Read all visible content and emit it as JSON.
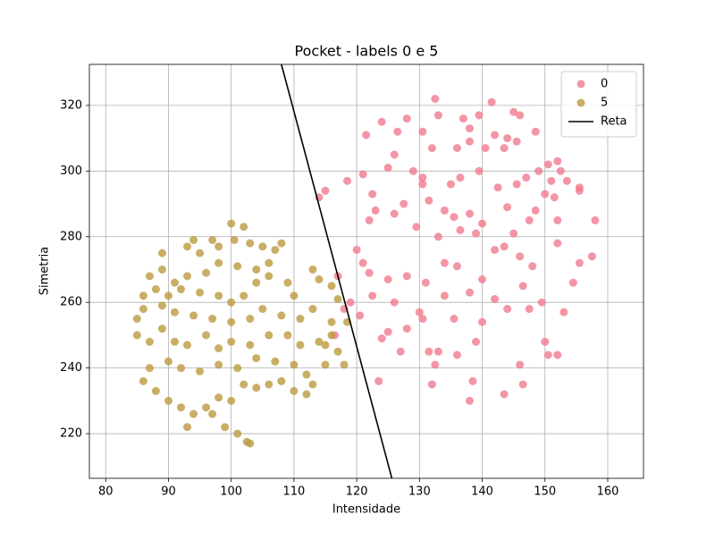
{
  "chart_data": {
    "type": "scatter",
    "title": "Pocket - labels 0 e 5",
    "x_label": "Intensidade",
    "y_label": "Simetria",
    "xlim": [
      77.4,
      165.7
    ],
    "ylim": [
      206.4,
      332.5
    ],
    "xticks": [
      80,
      90,
      100,
      110,
      120,
      130,
      140,
      150,
      160
    ],
    "yticks": [
      220,
      240,
      260,
      280,
      300,
      320
    ],
    "grid": true,
    "legend": "upper right",
    "series": [
      {
        "name": "0",
        "type": "scatter",
        "color": "#f07a8e",
        "x": [
          132.5,
          133,
          137,
          139.5,
          141.5,
          145,
          146,
          128,
          124,
          126.5,
          121.5,
          130.5,
          138,
          142,
          148.5,
          144,
          145.5,
          138,
          136,
          132,
          140.5,
          143.5,
          150.5,
          152,
          152.5,
          149,
          147,
          153.5,
          155.5,
          155.5,
          151,
          151.5,
          145.5,
          142.5,
          139.5,
          136.5,
          135,
          130.5,
          129,
          125,
          126,
          121,
          118.5,
          115,
          114,
          122.5,
          127.5,
          123,
          130.5,
          131.5,
          134,
          135.5,
          138,
          140,
          144,
          147.5,
          148.5,
          150,
          152,
          158,
          157.5,
          155.5,
          154.5,
          152,
          146,
          143.5,
          139,
          136.5,
          133,
          129.5,
          126,
          122,
          120,
          121,
          117,
          122,
          125,
          128,
          131,
          134,
          136,
          140,
          142,
          145,
          148,
          146.5,
          149.5,
          153,
          150,
          150.5,
          152,
          146,
          146.5,
          143.5,
          138,
          138.5,
          132,
          132.5,
          133,
          136,
          139,
          140,
          144,
          147.5,
          142,
          138,
          134,
          130,
          128,
          124,
          125,
          127,
          123.5,
          120.5,
          119,
          122.5,
          126,
          130.5,
          118,
          116.5,
          135.5,
          131.5
        ],
        "values": [
          322,
          317,
          316,
          317,
          321,
          318,
          317,
          316,
          315,
          312,
          311,
          312,
          313,
          311,
          312,
          310,
          309,
          309,
          307,
          307,
          307,
          307,
          302,
          303,
          300,
          300,
          298,
          297,
          295,
          294,
          297,
          292,
          296,
          295,
          300,
          298,
          296,
          298,
          300,
          301,
          305,
          299,
          297,
          294,
          292,
          293,
          290,
          288,
          296,
          291,
          288,
          286,
          287,
          284,
          289,
          285,
          288,
          293,
          285,
          285,
          274,
          272,
          266,
          278,
          274,
          277,
          281,
          282,
          280,
          283,
          287,
          285,
          276,
          272,
          268,
          269,
          267,
          268,
          266,
          272,
          271,
          267,
          276,
          281,
          271,
          265,
          260,
          257,
          248,
          244,
          244,
          241,
          235,
          232,
          230,
          236,
          235,
          241,
          245,
          244,
          248,
          254,
          258,
          258,
          261,
          263,
          262,
          257,
          252,
          249,
          251,
          245,
          236,
          256,
          260,
          262,
          260,
          255,
          258,
          250,
          255,
          245
        ]
      },
      {
        "name": "5",
        "type": "scatter",
        "color": "#bb9a3e",
        "x": [
          100,
          102,
          97,
          94,
          93,
          89,
          89,
          95,
          98,
          100.5,
          103,
          105,
          107,
          108,
          106,
          104,
          101,
          98,
          96,
          93,
          91,
          87,
          88,
          86,
          90,
          92,
          95,
          98,
          100,
          102,
          104,
          106,
          109,
          110,
          113,
          114,
          116,
          117,
          113,
          111,
          108,
          105,
          103,
          100,
          97,
          94,
          91,
          89,
          86,
          85,
          85,
          87,
          89,
          91,
          93,
          96,
          98,
          100,
          103,
          106,
          109,
          111,
          114,
          116,
          117,
          115,
          112,
          110,
          107,
          104,
          101,
          98,
          95,
          92,
          90,
          87,
          86,
          88,
          90,
          92,
          94,
          96,
          98,
          100,
          102,
          104,
          106,
          108,
          110,
          112,
          113,
          103,
          101,
          102.5,
          99,
          97,
          93,
          115,
          118,
          118.5,
          116
        ],
        "values": [
          284,
          283,
          279,
          279,
          277,
          275,
          270,
          275,
          277,
          279,
          278,
          277,
          276,
          278,
          272,
          270,
          271,
          272,
          269,
          268,
          266,
          268,
          264,
          262,
          262,
          264,
          263,
          262,
          260,
          262,
          266,
          268,
          266,
          262,
          270,
          267,
          265,
          261,
          258,
          255,
          256,
          258,
          255,
          254,
          255,
          256,
          257,
          259,
          258,
          255,
          250,
          248,
          252,
          248,
          247,
          250,
          246,
          248,
          247,
          250,
          250,
          247,
          248,
          250,
          245,
          241,
          238,
          241,
          242,
          243,
          240,
          241,
          239,
          240,
          242,
          240,
          236,
          233,
          230,
          228,
          226,
          228,
          231,
          230,
          235,
          234,
          235,
          236,
          233,
          232,
          235,
          217,
          220,
          217.5,
          222,
          226,
          222,
          247,
          241,
          254,
          254
        ]
      },
      {
        "name": "Reta",
        "type": "line",
        "color": "#000000",
        "x": [
          108.0,
          125.6
        ],
        "values": [
          332.5,
          206.4
        ]
      }
    ]
  }
}
